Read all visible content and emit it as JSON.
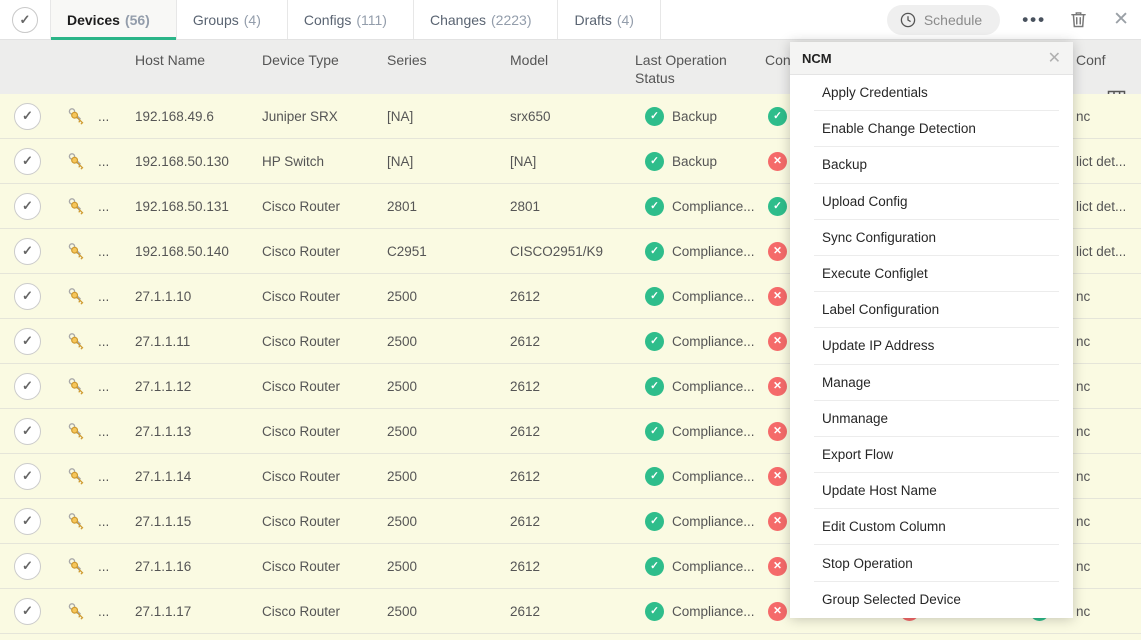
{
  "colors": {
    "status_green": "#2ebd8b",
    "status_red": "#f56a6a",
    "tab_underline": "#2bb588",
    "row_bg": "#fafae2"
  },
  "tabs": [
    {
      "label": "Devices",
      "count": "(56)",
      "active": true
    },
    {
      "label": "Groups",
      "count": "(4)",
      "active": false
    },
    {
      "label": "Configs",
      "count": "(111)",
      "active": false
    },
    {
      "label": "Changes",
      "count": "(2223)",
      "active": false
    },
    {
      "label": "Drafts",
      "count": "(4)",
      "active": false
    }
  ],
  "toolbar": {
    "schedule_label": "Schedule"
  },
  "table": {
    "col_host": "Host Name",
    "col_device_type": "Device Type",
    "col_series": "Series",
    "col_model": "Model",
    "col_last_op": "Last Operation Status",
    "col_con": "Con",
    "col_conf": "Conf",
    "row_more_label": "...",
    "check_glyph": "✓",
    "cross_glyph": "✕"
  },
  "rows": [
    {
      "host": "192.168.49.6",
      "type": "Juniper SRX",
      "series": "[NA]",
      "model": "srx650",
      "status": "Backup",
      "con_ok": true,
      "fragment": "nc"
    },
    {
      "host": "192.168.50.130",
      "type": "HP Switch",
      "series": "[NA]",
      "model": "[NA]",
      "status": "Backup",
      "con_ok": false,
      "fragment": "lict det..."
    },
    {
      "host": "192.168.50.131",
      "type": "Cisco Router",
      "series": "2801",
      "model": "2801",
      "status": "Compliance...",
      "con_ok": true,
      "fragment": "lict det..."
    },
    {
      "host": "192.168.50.140",
      "type": "Cisco Router",
      "series": "C2951",
      "model": "CISCO2951/K9",
      "status": "Compliance...",
      "con_ok": false,
      "fragment": "lict det..."
    },
    {
      "host": "27.1.1.10",
      "type": "Cisco Router",
      "series": "2500",
      "model": "2612",
      "status": "Compliance...",
      "con_ok": false,
      "fragment": "nc"
    },
    {
      "host": "27.1.1.11",
      "type": "Cisco Router",
      "series": "2500",
      "model": "2612",
      "status": "Compliance...",
      "con_ok": false,
      "fragment": "nc"
    },
    {
      "host": "27.1.1.12",
      "type": "Cisco Router",
      "series": "2500",
      "model": "2612",
      "status": "Compliance...",
      "con_ok": false,
      "fragment": "nc"
    },
    {
      "host": "27.1.1.13",
      "type": "Cisco Router",
      "series": "2500",
      "model": "2612",
      "status": "Compliance...",
      "con_ok": false,
      "fragment": "nc"
    },
    {
      "host": "27.1.1.14",
      "type": "Cisco Router",
      "series": "2500",
      "model": "2612",
      "status": "Compliance...",
      "con_ok": false,
      "fragment": "nc"
    },
    {
      "host": "27.1.1.15",
      "type": "Cisco Router",
      "series": "2500",
      "model": "2612",
      "status": "Compliance...",
      "con_ok": false,
      "fragment": "nc"
    },
    {
      "host": "27.1.1.16",
      "type": "Cisco Router",
      "series": "2500",
      "model": "2612",
      "status": "Compliance...",
      "con_ok": false,
      "fragment": "nc"
    },
    {
      "host": "27.1.1.17",
      "type": "Cisco Router",
      "series": "2500",
      "model": "2612",
      "status": "Compliance...",
      "con_ok": false,
      "fragment": "nc"
    }
  ],
  "menu": {
    "title": "NCM",
    "items": [
      "Apply Credentials",
      "Enable Change Detection",
      "Backup",
      "Upload Config",
      "Sync Configuration",
      "Execute Configlet",
      "Label Configuration",
      "Update IP Address",
      "Manage",
      "Unmanage",
      "Export Flow",
      "Update Host Name",
      "Edit Custom Column",
      "Stop Operation",
      "Group Selected Device"
    ]
  }
}
